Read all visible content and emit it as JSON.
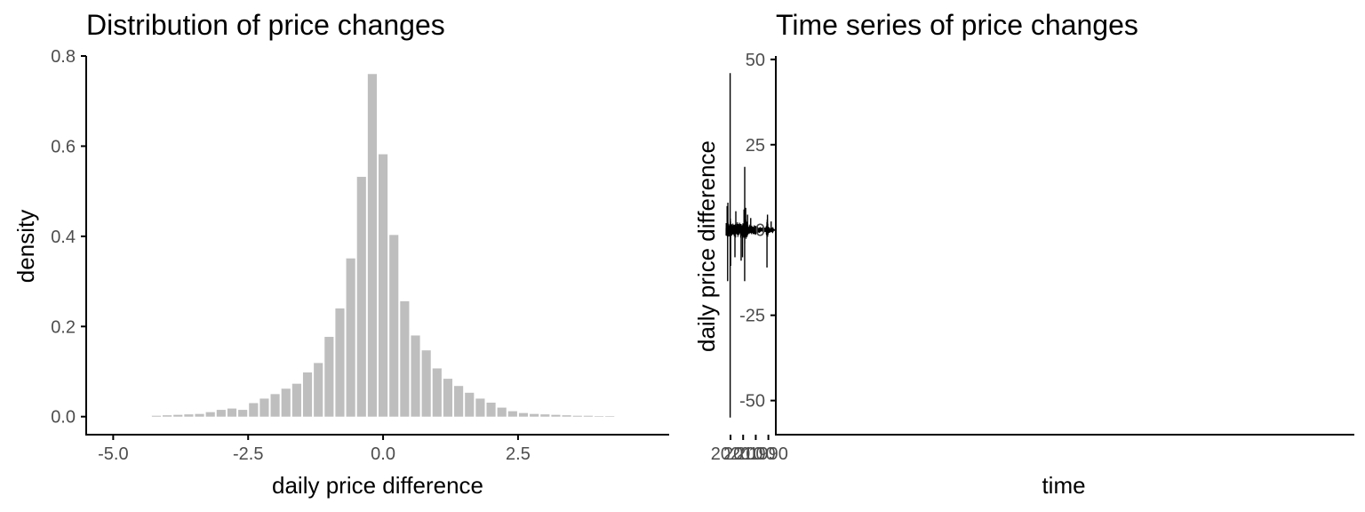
{
  "chart_data": [
    {
      "type": "bar",
      "title": "Distribution of price changes",
      "xlabel": "daily price difference",
      "ylabel": "density",
      "xlim": [
        -5.5,
        5.3
      ],
      "ylim": [
        -0.04,
        0.8
      ],
      "x_ticks": [
        -5,
        -2.5,
        0,
        2.5
      ],
      "x_tick_labels": [
        "-5.0",
        "-2.5",
        "0.0",
        "2.5"
      ],
      "y_ticks": [
        0,
        0.2,
        0.4,
        0.6,
        0.8
      ],
      "y_tick_labels": [
        "0.0",
        "0.2",
        "0.4",
        "0.6",
        "0.8"
      ],
      "bar_color": "#bebebe",
      "bin_width": 0.2,
      "bin_centers": [
        -4.2,
        -4.0,
        -3.8,
        -3.6,
        -3.4,
        -3.2,
        -3.0,
        -2.8,
        -2.6,
        -2.4,
        -2.2,
        -2.0,
        -1.8,
        -1.6,
        -1.4,
        -1.2,
        -1.0,
        -0.8,
        -0.6,
        -0.4,
        -0.2,
        0.0,
        0.2,
        0.4,
        0.6,
        0.8,
        1.0,
        1.2,
        1.4,
        1.6,
        1.8,
        2.0,
        2.2,
        2.4,
        2.6,
        2.8,
        3.0,
        3.2,
        3.4,
        3.6,
        3.8,
        4.0,
        4.2
      ],
      "values": [
        0.002,
        0.003,
        0.004,
        0.005,
        0.006,
        0.01,
        0.015,
        0.018,
        0.015,
        0.03,
        0.04,
        0.05,
        0.062,
        0.073,
        0.098,
        0.119,
        0.177,
        0.24,
        0.351,
        0.532,
        0.76,
        0.582,
        0.403,
        0.256,
        0.18,
        0.147,
        0.107,
        0.084,
        0.068,
        0.053,
        0.04,
        0.031,
        0.02,
        0.012,
        0.008,
        0.006,
        0.005,
        0.004,
        0.003,
        0.002,
        0.002,
        0.001,
        0.001
      ]
    },
    {
      "type": "line",
      "title": "Time series of price changes",
      "xlabel": "time",
      "ylabel": "daily price difference",
      "xlim": [
        1984.1,
        1525.4
      ],
      "ylim": [
        -60,
        51
      ],
      "x_ticks": [
        1990,
        2000,
        2010,
        2020
      ],
      "x_tick_labels": [
        "1990",
        "2000",
        "2010",
        "2020"
      ],
      "y_ticks": [
        -50,
        -25,
        0,
        25,
        50
      ],
      "y_tick_labels": [
        "-50",
        "-25",
        "0",
        "25",
        "50"
      ],
      "line_color": "#000000",
      "x_range": [
        1986,
        2023.6
      ],
      "volatility_envelope": {
        "x": [
          1986,
          1987,
          1988,
          1989,
          1990,
          1990.6,
          1991,
          1991.5,
          1992,
          1995,
          1997,
          1999,
          2000,
          2002,
          2004,
          2006,
          2007.5,
          2008.5,
          2009,
          2009.5,
          2010,
          2012,
          2014,
          2016,
          2018,
          2019.5,
          2020.1,
          2020.5,
          2021,
          2022,
          2022.5,
          2023,
          2023.6
        ],
        "amp": [
          0.8,
          0.6,
          0.5,
          0.6,
          0.8,
          2.5,
          3.0,
          1.2,
          0.6,
          0.6,
          0.7,
          0.9,
          1.1,
          1.3,
          1.2,
          1.2,
          1.8,
          4.0,
          3.0,
          2.0,
          1.8,
          1.8,
          1.6,
          1.6,
          1.7,
          1.6,
          3.5,
          2.0,
          1.6,
          2.5,
          2.2,
          1.8,
          1.8
        ]
      },
      "spikes": [
        {
          "x": 1987.8,
          "y": 2.5
        },
        {
          "x": 1990.7,
          "y": 4.5
        },
        {
          "x": 1991.1,
          "y": -11
        },
        {
          "x": 2004.0,
          "y": 3.5
        },
        {
          "x": 2006.5,
          "y": 4.5
        },
        {
          "x": 2008.0,
          "y": 6.5
        },
        {
          "x": 2008.3,
          "y": 5.5
        },
        {
          "x": 2008.75,
          "y": 18.5
        },
        {
          "x": 2008.8,
          "y": -15
        },
        {
          "x": 2009.3,
          "y": 6
        },
        {
          "x": 2010.5,
          "y": -8
        },
        {
          "x": 2011.6,
          "y": -9
        },
        {
          "x": 2015.8,
          "y": 5.5
        },
        {
          "x": 2016.5,
          "y": -8
        },
        {
          "x": 2019.9,
          "y": -10.5
        },
        {
          "x": 2020.29,
          "y": -55
        },
        {
          "x": 2020.31,
          "y": 46
        },
        {
          "x": 2022.1,
          "y": 8
        },
        {
          "x": 2022.3,
          "y": -15
        },
        {
          "x": 2022.7,
          "y": 7
        }
      ]
    }
  ]
}
